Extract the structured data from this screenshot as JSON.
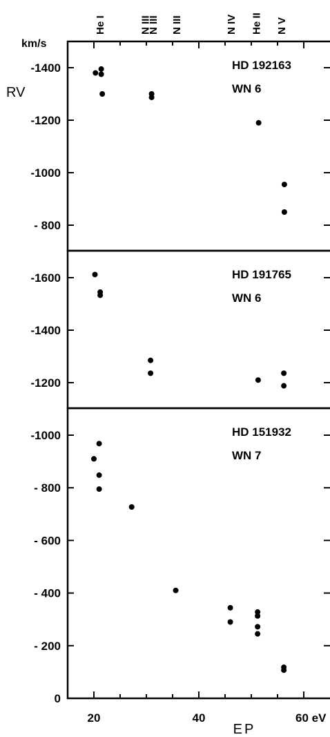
{
  "chart_data": [
    {
      "type": "scatter",
      "star": "HD 192163",
      "class": "WN 6",
      "ylim": [
        -750,
        -1500
      ],
      "yticks": [
        {
          "value": -1400,
          "label": "-1400"
        },
        {
          "value": -1200,
          "label": "-1200"
        },
        {
          "value": -1000,
          "label": "-1000"
        },
        {
          "value": -800,
          "label": "- 800"
        }
      ],
      "points": [
        {
          "x": 20.3,
          "y": -1380
        },
        {
          "x": 21.4,
          "y": -1395
        },
        {
          "x": 21.4,
          "y": -1375
        },
        {
          "x": 21.6,
          "y": -1300
        },
        {
          "x": 31.0,
          "y": -1300
        },
        {
          "x": 31.0,
          "y": -1287
        },
        {
          "x": 51.4,
          "y": -1190
        },
        {
          "x": 56.3,
          "y": -955
        },
        {
          "x": 56.3,
          "y": -850
        }
      ]
    },
    {
      "type": "scatter",
      "star": "HD 191765",
      "class": "WN 6",
      "ylim": [
        -1100,
        -1700
      ],
      "yticks": [
        {
          "value": -1600,
          "label": "-1600"
        },
        {
          "value": -1400,
          "label": "-1400"
        },
        {
          "value": -1200,
          "label": "-1200"
        }
      ],
      "points": [
        {
          "x": 20.2,
          "y": -1612
        },
        {
          "x": 21.2,
          "y": -1545
        },
        {
          "x": 21.2,
          "y": -1533
        },
        {
          "x": 30.8,
          "y": -1285
        },
        {
          "x": 30.8,
          "y": -1236
        },
        {
          "x": 51.3,
          "y": -1210
        },
        {
          "x": 56.2,
          "y": -1236
        },
        {
          "x": 56.2,
          "y": -1188
        }
      ]
    },
    {
      "type": "scatter",
      "star": "HD 151932",
      "class": "WN 7",
      "ylim": [
        0,
        -1100
      ],
      "yticks": [
        {
          "value": -1000,
          "label": "-1000"
        },
        {
          "value": -800,
          "label": "- 800"
        },
        {
          "value": -600,
          "label": "- 600"
        },
        {
          "value": -400,
          "label": "- 400"
        },
        {
          "value": -200,
          "label": "- 200"
        },
        {
          "value": 0,
          "label": "0"
        }
      ],
      "points": [
        {
          "x": 20.0,
          "y": -910
        },
        {
          "x": 21.0,
          "y": -968
        },
        {
          "x": 21.0,
          "y": -848
        },
        {
          "x": 21.0,
          "y": -795
        },
        {
          "x": 27.2,
          "y": -727
        },
        {
          "x": 35.6,
          "y": -410
        },
        {
          "x": 46.0,
          "y": -344
        },
        {
          "x": 46.0,
          "y": -290
        },
        {
          "x": 51.2,
          "y": -328
        },
        {
          "x": 51.2,
          "y": -313
        },
        {
          "x": 51.2,
          "y": -272
        },
        {
          "x": 51.2,
          "y": -245
        },
        {
          "x": 56.2,
          "y": -118
        },
        {
          "x": 56.2,
          "y": -107
        }
      ]
    }
  ],
  "axes": {
    "x_ticks": [
      {
        "value": 20,
        "label": "20"
      },
      {
        "value": 40,
        "label": "40"
      },
      {
        "value": 60,
        "label": "60 eV"
      }
    ],
    "x_minor_ticks": [
      15,
      25,
      30,
      35,
      45,
      50,
      55
    ],
    "xlabel": "EP",
    "ylabel": "RV",
    "y_unit": "km/s"
  },
  "ion_labels": [
    {
      "text": "He I",
      "x": 21.2
    },
    {
      "text": "N III",
      "x": 29.8
    },
    {
      "text": "N III",
      "x": 31.3
    },
    {
      "text": "N III",
      "x": 35.8
    },
    {
      "text": "N IV",
      "x": 46.2
    },
    {
      "text": "He II",
      "x": 51.0
    },
    {
      "text": "N V",
      "x": 55.8
    }
  ]
}
